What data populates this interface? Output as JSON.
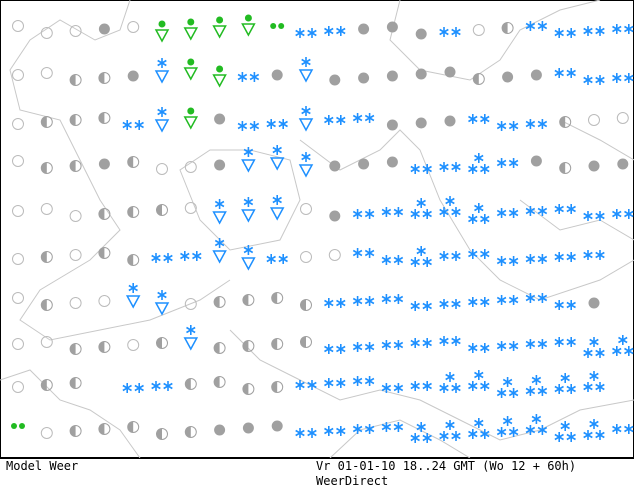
{
  "footer": {
    "model": "Model Weer",
    "valid": "Vr 01-01-10 18..24 GMT (Wo 12 + 60h)",
    "source": "WeerDirect"
  }
}
